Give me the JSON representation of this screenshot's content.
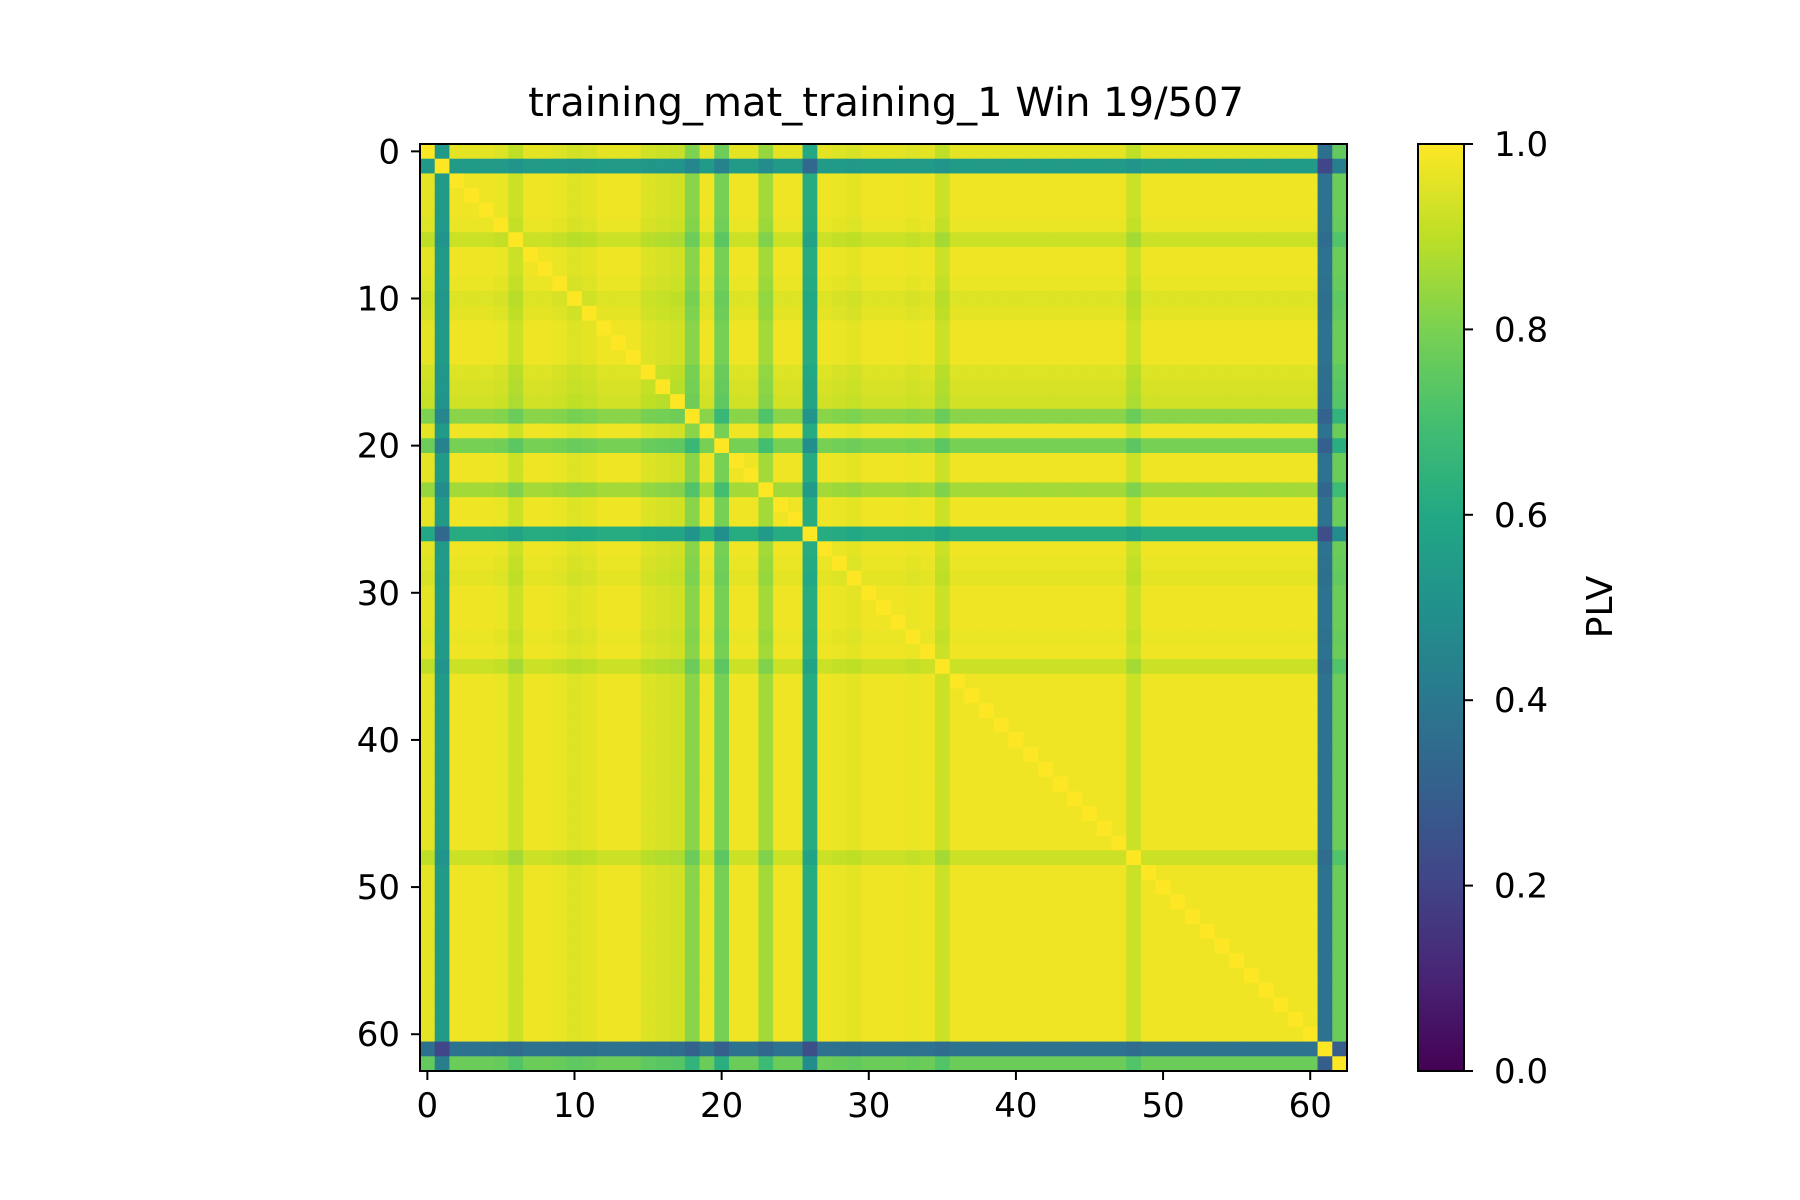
{
  "chart_data": {
    "type": "heatmap",
    "title": "training_mat_training_1 Win 19/507",
    "size": 63,
    "x_ticks": [
      0,
      10,
      20,
      30,
      40,
      50,
      60
    ],
    "y_ticks": [
      0,
      10,
      20,
      30,
      40,
      50,
      60
    ],
    "x_tick_labels": [
      "0",
      "10",
      "20",
      "30",
      "40",
      "50",
      "60"
    ],
    "y_tick_labels": [
      "0",
      "10",
      "20",
      "30",
      "40",
      "50",
      "60"
    ],
    "xlim": [
      -0.5,
      62.5
    ],
    "ylim": [
      62.5,
      -0.5
    ],
    "colorbar": {
      "label": "PLV",
      "range": [
        0.0,
        1.0
      ],
      "ticks": [
        0.0,
        0.2,
        0.4,
        0.6,
        0.8,
        1.0
      ],
      "tick_labels": [
        "0.0",
        "0.2",
        "0.4",
        "0.6",
        "0.8",
        "1.0"
      ],
      "colormap": "viridis"
    },
    "channel_strength": [
      0.97,
      0.55,
      0.99,
      0.99,
      0.99,
      0.98,
      0.93,
      0.99,
      0.99,
      0.98,
      0.96,
      0.97,
      0.99,
      0.99,
      0.99,
      0.96,
      0.95,
      0.94,
      0.83,
      0.99,
      0.8,
      0.99,
      0.99,
      0.87,
      0.99,
      0.99,
      0.62,
      0.99,
      0.98,
      0.97,
      0.99,
      0.99,
      0.99,
      0.98,
      0.99,
      0.93,
      0.99,
      0.99,
      0.99,
      0.99,
      0.99,
      0.99,
      0.99,
      0.99,
      0.99,
      0.99,
      0.99,
      0.99,
      0.93,
      0.99,
      0.99,
      0.99,
      0.99,
      0.99,
      0.99,
      0.99,
      0.99,
      0.99,
      0.99,
      0.99,
      0.99,
      0.38,
      0.78
    ],
    "diagonal_value": 1.0
  }
}
